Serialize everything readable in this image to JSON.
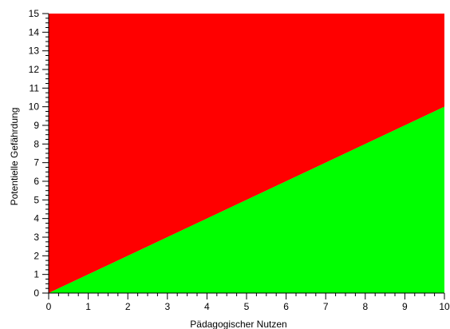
{
  "chart_data": {
    "type": "area",
    "title": "",
    "xlabel": "Pädagogischer Nutzen",
    "ylabel": "Potentielle Gefährdung",
    "xlim": [
      0,
      10
    ],
    "ylim": [
      0,
      15
    ],
    "x_ticks": [
      "0",
      "1",
      "2",
      "3",
      "4",
      "5",
      "6",
      "7",
      "8",
      "9",
      "10"
    ],
    "y_ticks": [
      "0",
      "1",
      "2",
      "3",
      "4",
      "5",
      "6",
      "7",
      "8",
      "9",
      "10",
      "11",
      "12",
      "13",
      "14",
      "15"
    ],
    "x_minor_step": 0.25,
    "y_minor_step": 0.25,
    "grid": false,
    "boundary_line": {
      "x": [
        0,
        10
      ],
      "y": [
        0,
        10
      ]
    },
    "regions": [
      {
        "position": "above-line",
        "color": "#ff0000"
      },
      {
        "position": "below-line",
        "color": "#00ff00"
      }
    ]
  }
}
